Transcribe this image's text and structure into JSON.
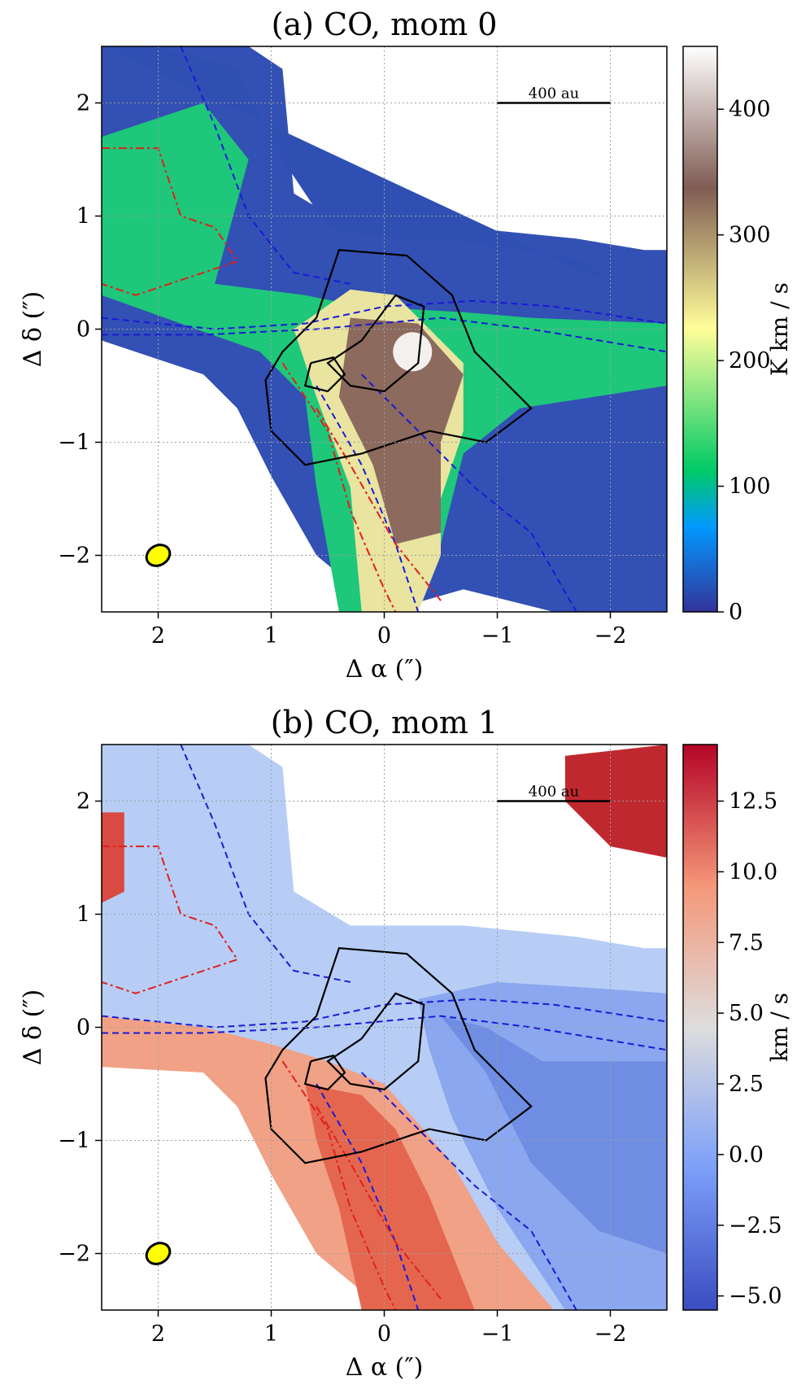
{
  "chart_data": [
    {
      "type": "heatmap",
      "title": "(a) CO, mom 0",
      "xlabel": "Δ α (″)",
      "ylabel": "Δ δ (″)",
      "xlim": [
        2.5,
        -2.5
      ],
      "ylim": [
        -2.5,
        2.5
      ],
      "xticks": [
        "2",
        "1",
        "0",
        "−1",
        "−2"
      ],
      "yticks": [
        "−2",
        "−1",
        "0",
        "1",
        "2"
      ],
      "grid": true,
      "colorbar": {
        "label": "K km / s",
        "range": [
          0,
          450
        ],
        "ticks": [
          "0",
          "100",
          "200",
          "300",
          "400"
        ],
        "colormap": "terrain"
      },
      "scale_bar": {
        "label": "400 au",
        "from": -1,
        "to": -2,
        "y": 2
      },
      "beam": {
        "x": 2.0,
        "y": -2.0,
        "color": "#ffff00"
      }
    },
    {
      "type": "heatmap",
      "title": "(b) CO, mom 1",
      "xlabel": "Δ α (″)",
      "ylabel": "Δ δ (″)",
      "xlim": [
        2.5,
        -2.5
      ],
      "ylim": [
        -2.5,
        2.5
      ],
      "xticks": [
        "2",
        "1",
        "0",
        "−1",
        "−2"
      ],
      "yticks": [
        "−2",
        "−1",
        "0",
        "1",
        "2"
      ],
      "grid": true,
      "colorbar": {
        "label": "km / s",
        "range": [
          -5.5,
          14.5
        ],
        "ticks": [
          "−5.0",
          "−2.5",
          "0.0",
          "2.5",
          "5.0",
          "7.5",
          "10.0",
          "12.5"
        ],
        "colormap": "coolwarm"
      },
      "scale_bar": {
        "label": "400 au",
        "from": -1,
        "to": -2,
        "y": 2
      },
      "beam": {
        "x": 2.0,
        "y": -2.0,
        "color": "#ffff00"
      }
    }
  ]
}
